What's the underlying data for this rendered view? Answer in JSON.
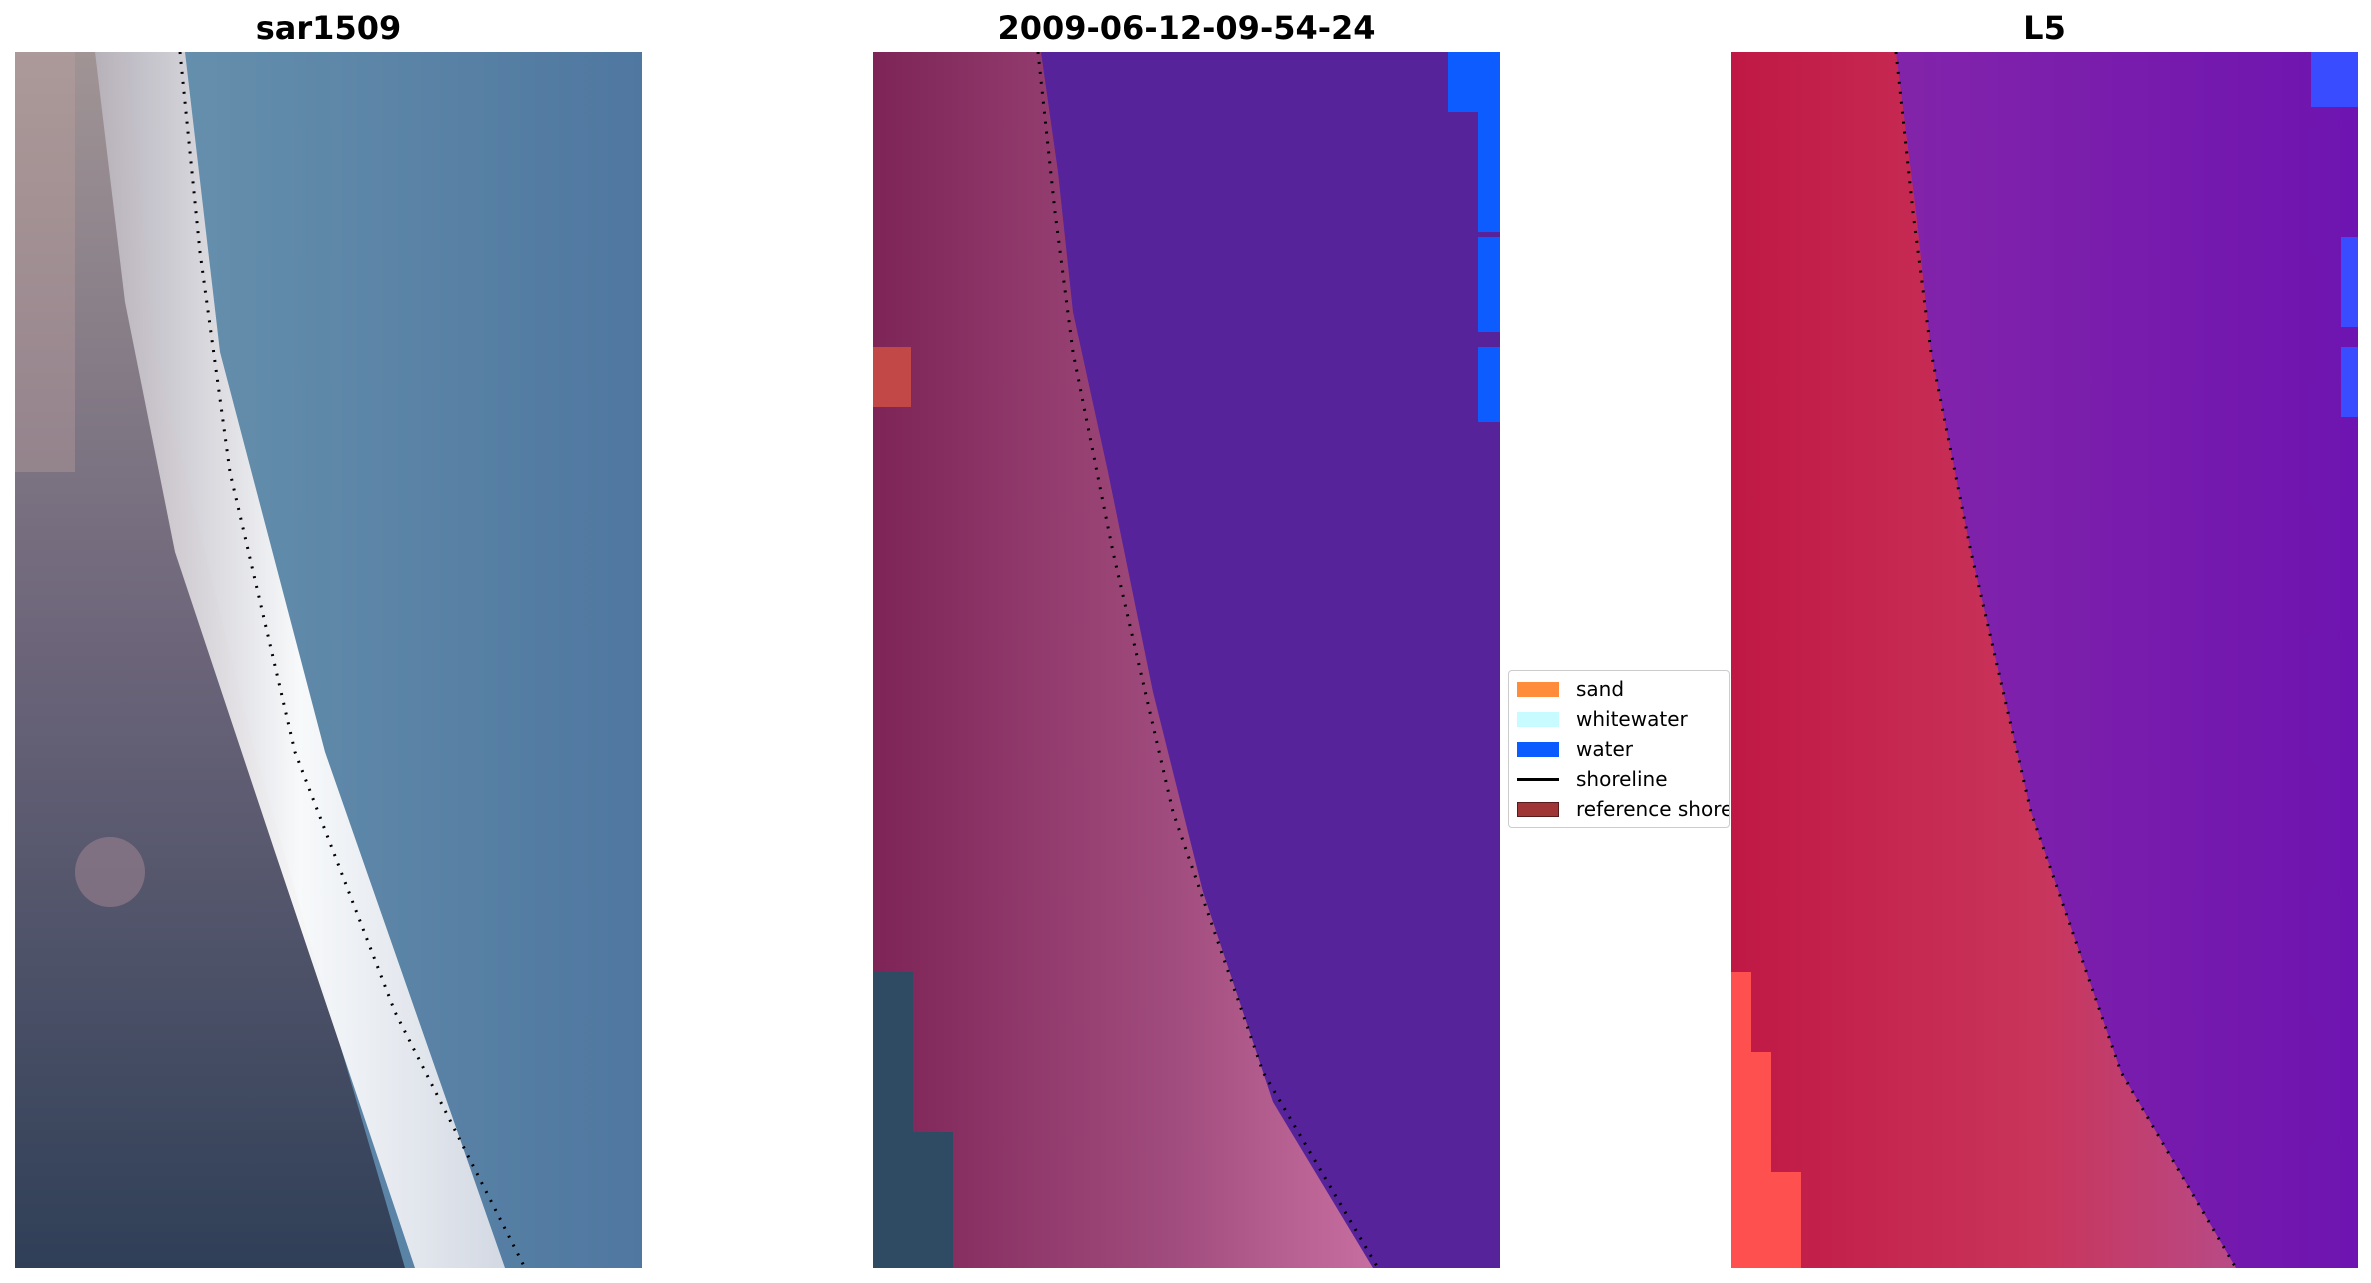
{
  "panels": [
    {
      "title": "sar1509",
      "image": "rgb-satellite-image"
    },
    {
      "title": "2009-06-12-09-54-24",
      "image": "classified-image"
    },
    {
      "title": "L5",
      "image": "false-color-image"
    }
  ],
  "legend": {
    "items": [
      {
        "label": "sand",
        "color": "#ff8c3a"
      },
      {
        "label": "whitewater",
        "color": "#c8fbff"
      },
      {
        "label": "water",
        "color": "#0a5cff"
      },
      {
        "label": "shoreline",
        "color": "#000000"
      },
      {
        "label": "reference shoreline",
        "color": "#a03535"
      }
    ]
  },
  "colors": {
    "shoreline_dots": "#000000"
  }
}
